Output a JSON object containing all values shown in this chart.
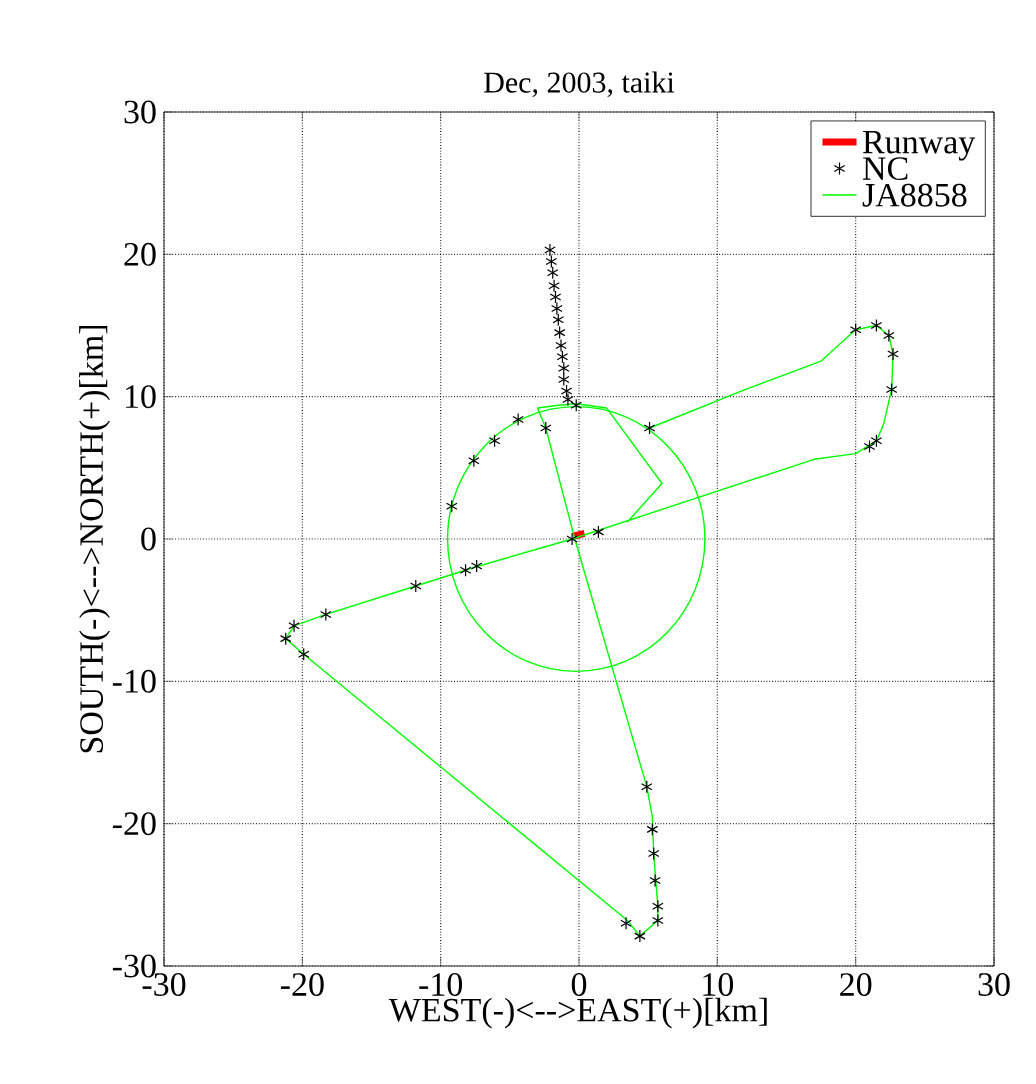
{
  "chart_data": {
    "type": "line",
    "title": "Dec, 2003, taiki",
    "xlabel": "WEST(-)<-->EAST(+)[km]",
    "ylabel": "SOUTH(-)<-->NORTH(+)[km]",
    "xlim": [
      -30,
      30
    ],
    "ylim": [
      -30,
      30
    ],
    "xticks": [
      -30,
      -20,
      -10,
      0,
      10,
      20,
      30
    ],
    "yticks": [
      -30,
      -20,
      -10,
      0,
      10,
      20,
      30
    ],
    "grid": true,
    "legend": "top right",
    "series": [
      {
        "name": "Runway",
        "color": "#ff0000",
        "line_style": "solid",
        "marker": "none",
        "x": [
          -0.4,
          0.4
        ],
        "values": [
          0.2,
          0.4
        ]
      },
      {
        "name": "NC",
        "type": "scatter",
        "color": "#000000",
        "marker": "cross",
        "x": [
          -2.1,
          -2.0,
          -1.9,
          -1.8,
          -1.7,
          -1.6,
          -1.5,
          -1.4,
          -1.3,
          -1.2,
          -1.1,
          -1.1,
          -0.9,
          -0.8,
          -0.2,
          -2.4,
          -4.4,
          -6.1,
          -7.6,
          -9.2,
          5.1,
          20,
          21.5,
          22.4,
          22.7,
          22.6,
          21.5,
          21,
          -0.5,
          1.4,
          -7.4,
          -8.2,
          -11.8,
          -18.3,
          -20.6,
          -21.2,
          -19.9,
          4.9,
          5.3,
          5.4,
          5.5,
          5.7,
          5.7,
          4.4,
          3.4
        ],
        "values": [
          20.3,
          19.5,
          18.7,
          17.8,
          17.0,
          16.2,
          15.4,
          14.5,
          13.6,
          12.8,
          12.0,
          11.2,
          10.4,
          9.8,
          9.4,
          7.8,
          8.4,
          6.9,
          5.5,
          2.3,
          7.8,
          14.7,
          15,
          14.3,
          13,
          10.5,
          6.9,
          6.5,
          0,
          0.5,
          -1.9,
          -2.2,
          -3.3,
          -5.3,
          -6.1,
          -7,
          -8.1,
          -17.4,
          -20.4,
          -22.1,
          -24,
          -25.8,
          -26.8,
          -27.9,
          -27
        ]
      },
      {
        "name": "JA8858",
        "color": "#00ff00",
        "line_style": "solid",
        "marker": "none",
        "x": [
          5.1,
          12,
          17.5,
          20,
          21.5,
          22.4,
          22.7,
          22.6,
          22,
          21.5,
          20,
          17,
          -0.5,
          -7.6,
          -11.8,
          -18.3,
          -20.6,
          -21.2,
          -19.9,
          3.5,
          4.4,
          5.7,
          5.7,
          5.4,
          5.3,
          4.9,
          -0.3,
          -2.4,
          -3,
          -1.5,
          -0.2,
          2,
          6,
          3.5
        ],
        "values": [
          7.8,
          10.5,
          12.5,
          14.7,
          15,
          14.3,
          13,
          10.5,
          8,
          6.9,
          6,
          5.6,
          0,
          -2,
          -3.3,
          -5.3,
          -6.1,
          -7,
          -8.1,
          -26.8,
          -27.9,
          -26.8,
          -25.8,
          -22.1,
          -19.5,
          -17.4,
          0,
          7.8,
          9.2,
          9.4,
          9.5,
          9.2,
          3.9,
          1.2
        ]
      }
    ]
  }
}
